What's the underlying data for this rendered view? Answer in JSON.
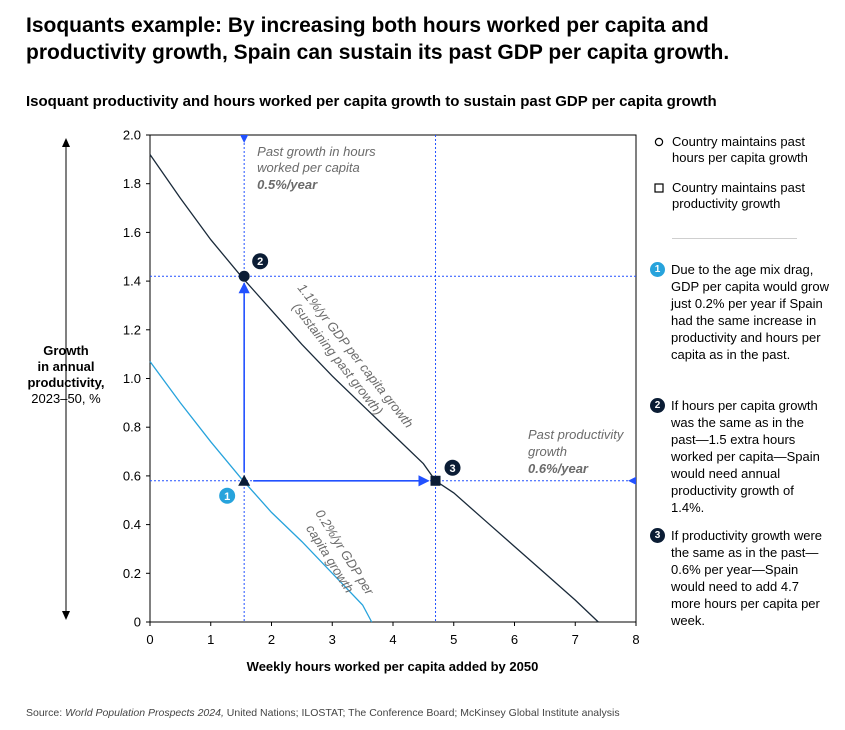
{
  "title": "Isoquants example: By increasing both hours worked per capita and productivity growth, Spain can sustain its past GDP per capita growth.",
  "subtitle": "Isoquant productivity and hours worked per capita growth to sustain past GDP per capita growth",
  "y_axis_label": {
    "line1": "Growth",
    "line2": "in annual",
    "line3": "productivity,",
    "line4": "2023–50, %"
  },
  "x_axis_label": "Weekly hours worked per capita added by 2050",
  "source": {
    "prefix": "Source: ",
    "italic": "World Population Prospects 2024,",
    "rest": " United Nations; ILOSTAT; The Conference Board; McKinsey Global Institute analysis"
  },
  "legend": {
    "circle": "Country maintains past hours per capita growth",
    "square": "Country maintains past productivity growth"
  },
  "notes": [
    {
      "num": "1",
      "text": "Due to the age mix drag, GDP per capita would grow just 0.2% per year if Spain had the same increase in productivity and hours per capita as in the past."
    },
    {
      "num": "2",
      "text": "If hours per capita growth was the same as in the past—1.5 extra hours worked per capita—Spain would need annual productivity growth of 1.4%."
    },
    {
      "num": "3",
      "text": "If productivity growth were the same as in the past—0.6% per year—Spain would need to add 4.7 more hours per capita per week."
    }
  ],
  "colors": {
    "dark_curve": "#1a2a3a",
    "light_curve": "#27a3dc",
    "arrow": "#2251ff",
    "dotted": "#2251ff",
    "axis": "#000000",
    "annotation_text": "#6b6b6b",
    "badge_dark": "#0b1d35",
    "badge_light": "#27a3dc"
  },
  "chart_data": {
    "type": "line",
    "xlim": [
      0,
      8
    ],
    "ylim": [
      0,
      2.0
    ],
    "x_ticks": [
      0,
      1,
      2,
      3,
      4,
      5,
      6,
      7,
      8
    ],
    "y_ticks": [
      0,
      0.2,
      0.4,
      0.6,
      0.8,
      1.0,
      1.2,
      1.4,
      1.6,
      1.8,
      2.0
    ],
    "x_tick_labels": [
      "0",
      "1",
      "2",
      "3",
      "4",
      "5",
      "6",
      "7",
      "8"
    ],
    "y_tick_labels": [
      "0",
      "0.2",
      "0.4",
      "0.6",
      "0.8",
      "1.0",
      "1.2",
      "1.4",
      "1.6",
      "1.8",
      "2.0"
    ],
    "grid": false,
    "series": [
      {
        "name": "1.1%/yr GDP per capita growth (sustaining past growth)",
        "label_line1": "1.1%/yr GDP per capita growth",
        "label_line2": "(sustaining past growth)",
        "x": [
          0,
          0.5,
          1.0,
          1.5,
          2.0,
          2.5,
          3.0,
          3.5,
          4.0,
          4.5,
          4.7,
          5.0,
          5.5,
          6.0,
          6.5,
          7.0,
          7.38
        ],
        "y": [
          1.92,
          1.74,
          1.57,
          1.42,
          1.28,
          1.14,
          1.01,
          0.89,
          0.77,
          0.65,
          0.58,
          0.53,
          0.42,
          0.31,
          0.2,
          0.09,
          0.0
        ]
      },
      {
        "name": "0.2%/yr GDP per capita growth",
        "label_line1": "0.2%/yr GDP per",
        "label_line2": "capita growth",
        "x": [
          0,
          0.5,
          1.0,
          1.5,
          2.0,
          2.5,
          3.0,
          3.5,
          3.65
        ],
        "y": [
          1.07,
          0.9,
          0.74,
          0.59,
          0.45,
          0.33,
          0.2,
          0.07,
          0.0
        ]
      }
    ],
    "annotations": {
      "past_hours_line": {
        "x": 1.55,
        "label_line1": "Past growth in hours",
        "label_line2": "worked per capita",
        "label_value": "0.5%/year"
      },
      "past_productivity_line": {
        "y": 0.58,
        "label_line1": "Past productivity",
        "label_line2": "growth",
        "label_value": "0.6%/year"
      },
      "vertical_ref_2": {
        "y": 1.42
      },
      "vertical_ref_3": {
        "x": 4.7
      }
    },
    "points": [
      {
        "id": "1",
        "x": 1.55,
        "y": 0.58,
        "marker": "triangle"
      },
      {
        "id": "2",
        "x": 1.55,
        "y": 1.42,
        "marker": "circle"
      },
      {
        "id": "3",
        "x": 4.7,
        "y": 0.58,
        "marker": "square"
      }
    ],
    "arrows": [
      {
        "from": [
          1.55,
          0.58
        ],
        "to": [
          1.55,
          1.42
        ]
      },
      {
        "from": [
          1.55,
          0.58
        ],
        "to": [
          4.7,
          0.58
        ]
      }
    ]
  }
}
